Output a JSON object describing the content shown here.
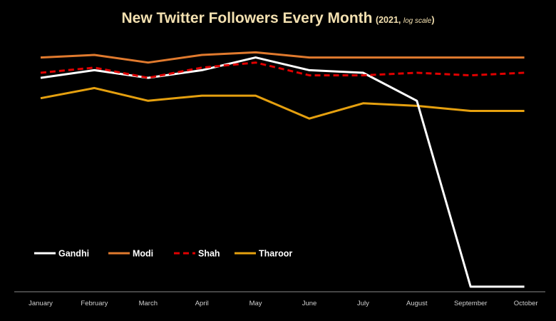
{
  "chart_data": {
    "type": "line",
    "title": "New Twitter Followers Every Month",
    "subtitle_year": "(2021, ",
    "subtitle_scale": "log scale",
    "subtitle_close": ")",
    "xlabel": "",
    "ylabel": "",
    "y_scale": "log",
    "grid": false,
    "legend_position": "bottom-left",
    "categories": [
      "January",
      "February",
      "March",
      "April",
      "May",
      "June",
      "July",
      "August",
      "September",
      "October"
    ],
    "series": [
      {
        "name": "Gandhi",
        "color": "#FFFFFF",
        "dash": "solid",
        "values": [
          0.84,
          0.87,
          0.84,
          0.87,
          0.92,
          0.87,
          0.86,
          0.75,
          0.02,
          0.02
        ]
      },
      {
        "name": "Modi",
        "color": "#E07A2E",
        "dash": "solid",
        "values": [
          0.92,
          0.93,
          0.9,
          0.93,
          0.94,
          0.92,
          0.92,
          0.92,
          0.92,
          0.92
        ]
      },
      {
        "name": "Shah",
        "color": "#E00000",
        "dash": "dashed",
        "values": [
          0.86,
          0.88,
          0.84,
          0.88,
          0.9,
          0.85,
          0.85,
          0.86,
          0.85,
          0.86
        ]
      },
      {
        "name": "Tharoor",
        "color": "#E5A00F",
        "dash": "solid",
        "values": [
          0.76,
          0.8,
          0.75,
          0.77,
          0.77,
          0.68,
          0.74,
          0.73,
          0.71,
          0.71
        ]
      }
    ]
  }
}
